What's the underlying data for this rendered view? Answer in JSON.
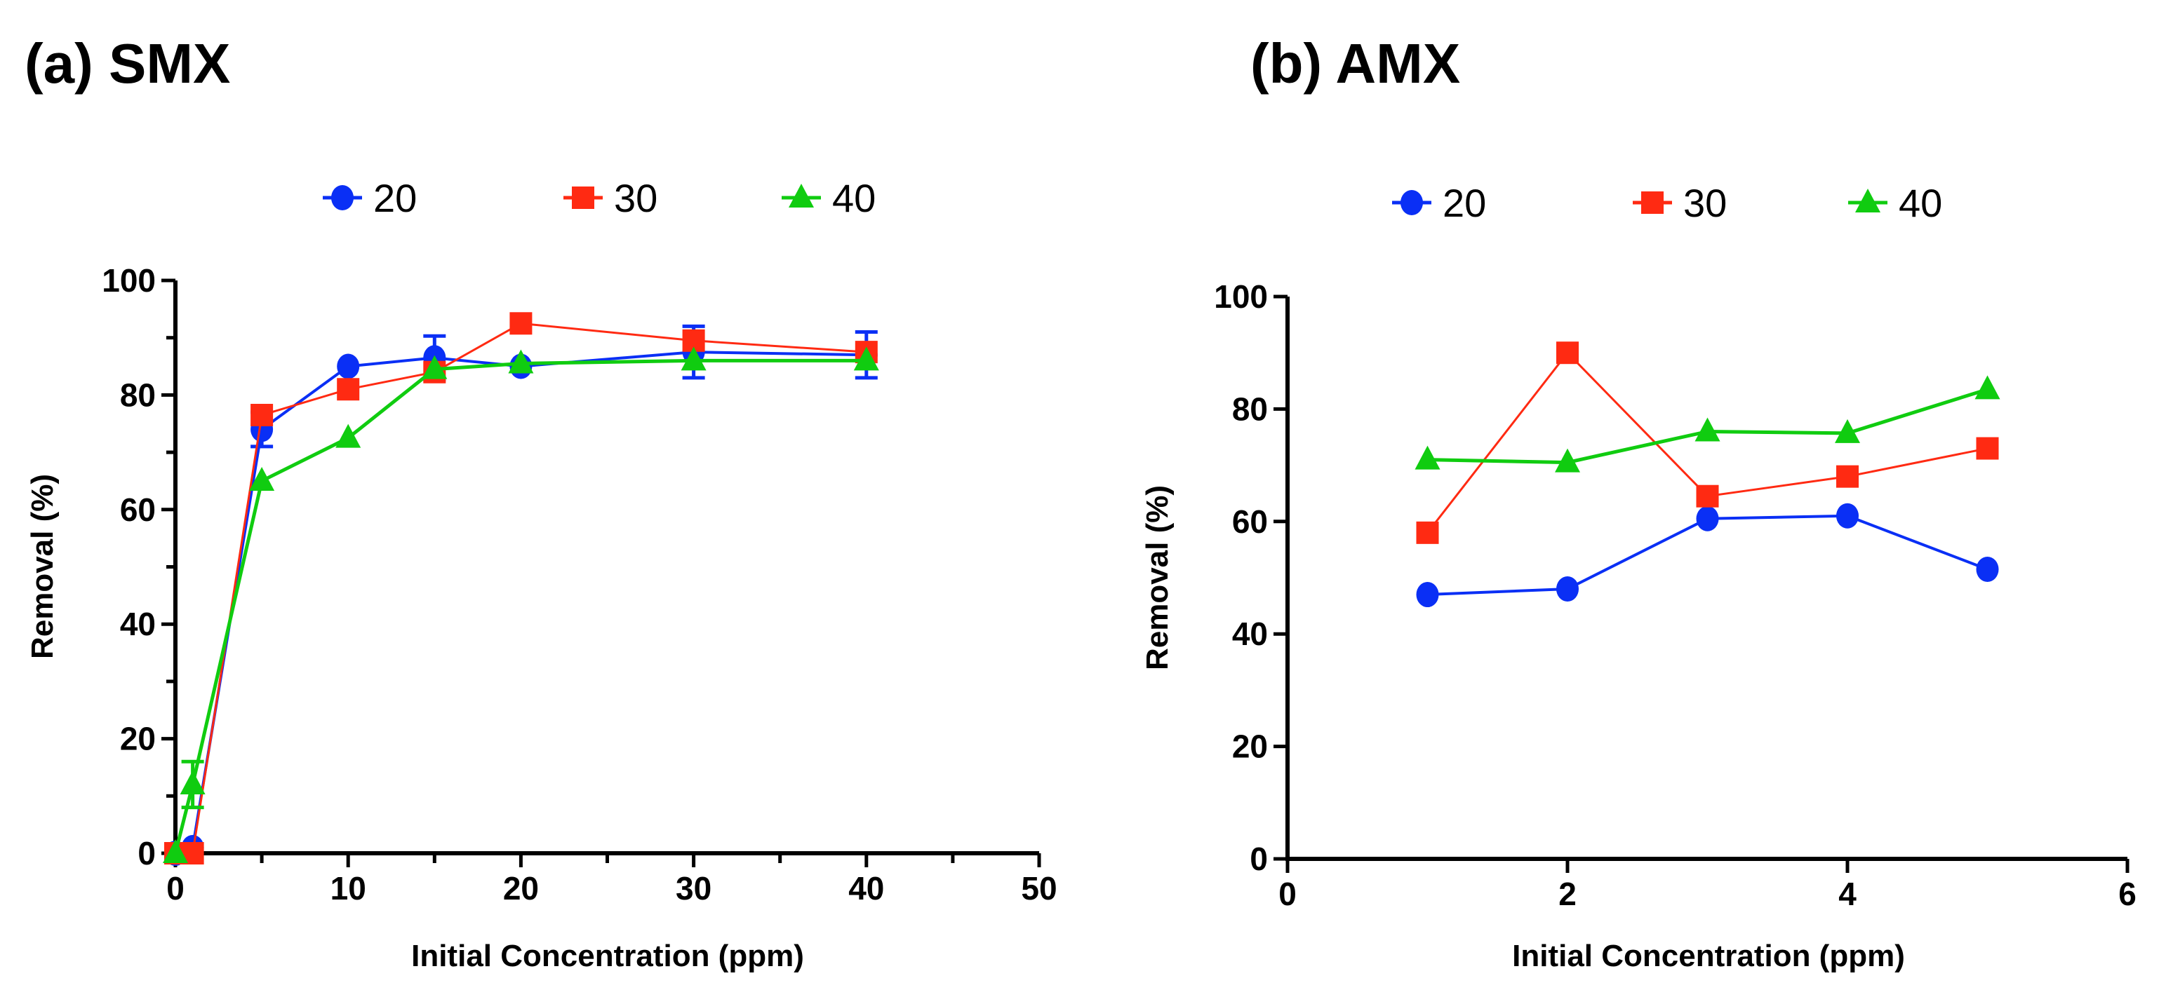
{
  "chart_data": [
    {
      "type": "line",
      "title": "(a) SMX",
      "xlabel": "Initial Concentration (ppm)",
      "ylabel": "Removal (%)",
      "xlim": [
        0,
        50
      ],
      "ylim": [
        0,
        100
      ],
      "xticks": [
        0,
        10,
        20,
        30,
        40,
        50
      ],
      "yticks": [
        0,
        20,
        40,
        60,
        80,
        100
      ],
      "legend_position": "top",
      "grid": false,
      "series": [
        {
          "name": "20",
          "color": "#0a2ff5",
          "marker": "circle",
          "x": [
            0,
            1,
            5,
            10,
            15,
            20,
            30,
            40
          ],
          "y": [
            0,
            1,
            74,
            85,
            86.5,
            85,
            87.5,
            87
          ],
          "err": [
            0,
            0,
            3,
            0,
            3.8,
            0,
            4.5,
            4
          ]
        },
        {
          "name": "30",
          "color": "#ff2a12",
          "marker": "square",
          "x": [
            0,
            1,
            5,
            10,
            15,
            20,
            30,
            40
          ],
          "y": [
            0,
            0,
            76.5,
            81,
            84,
            92.5,
            89.5,
            87.5
          ],
          "err": [
            0,
            0,
            0,
            0,
            0,
            0,
            0,
            0
          ]
        },
        {
          "name": "40",
          "color": "#10cc10",
          "marker": "triangle",
          "x": [
            0,
            1,
            5,
            10,
            15,
            20,
            30,
            40
          ],
          "y": [
            0,
            12,
            65,
            72.5,
            84.5,
            85.5,
            86,
            86
          ],
          "err": [
            0,
            4,
            0,
            0,
            0,
            0,
            0,
            0
          ]
        }
      ]
    },
    {
      "type": "line",
      "title": "(b) AMX",
      "xlabel": "Initial Concentration (ppm)",
      "ylabel": "Removal (%)",
      "xlim": [
        0,
        6
      ],
      "ylim": [
        0,
        100
      ],
      "xticks": [
        0,
        2,
        4,
        6
      ],
      "yticks": [
        0,
        20,
        40,
        60,
        80,
        100
      ],
      "legend_position": "top",
      "grid": false,
      "series": [
        {
          "name": "20",
          "color": "#0a2ff5",
          "marker": "circle",
          "x": [
            1,
            2,
            3,
            4,
            5
          ],
          "y": [
            47,
            48,
            60.5,
            61,
            51.5
          ],
          "err": [
            0,
            0,
            0,
            0,
            0
          ]
        },
        {
          "name": "30",
          "color": "#ff2a12",
          "marker": "square",
          "x": [
            1,
            2,
            3,
            4,
            5
          ],
          "y": [
            58,
            90,
            64.5,
            68,
            73
          ],
          "err": [
            0,
            0,
            0,
            0,
            0
          ]
        },
        {
          "name": "40",
          "color": "#10cc10",
          "marker": "triangle",
          "x": [
            1,
            2,
            3,
            4,
            5
          ],
          "y": [
            71,
            70.5,
            76,
            75.7,
            83.5
          ],
          "err": [
            0,
            0,
            0,
            0,
            0
          ]
        }
      ]
    }
  ]
}
